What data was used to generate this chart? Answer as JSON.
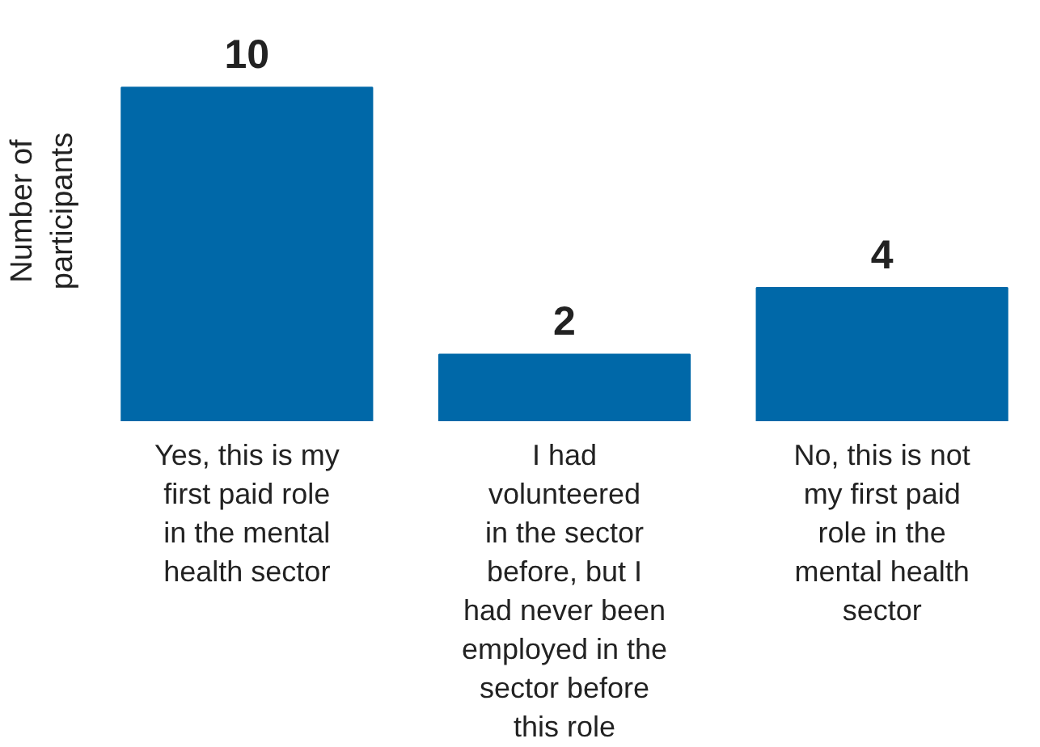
{
  "chart_data": {
    "type": "bar",
    "ylabel": "Number of\nparticipants",
    "categories": [
      "Yes, this is my\nfirst paid role\nin the mental\nhealth sector",
      "I had\nvolunteered\nin the sector\nbefore, but I\nhad never been\nemployed in the\nsector before\nthis role",
      "No, this is not\nmy first paid\nrole in the\nmental health\nsector"
    ],
    "values": [
      10,
      2,
      4
    ],
    "color": "#0068a8",
    "data_labels": true
  }
}
